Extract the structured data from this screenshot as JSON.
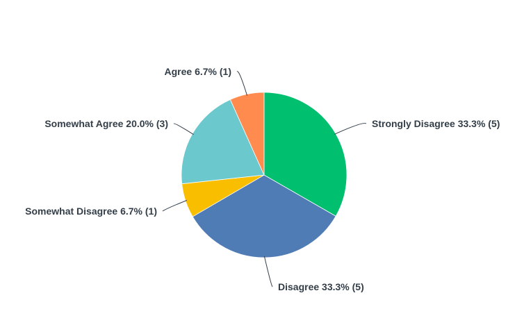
{
  "chart_data": {
    "type": "pie",
    "slices": [
      {
        "label": "Strongly Disagree",
        "percent": 33.3,
        "count": 5,
        "color": "#00bf6f",
        "text": "Strongly Disagree 33.3% (5)"
      },
      {
        "label": "Disagree",
        "percent": 33.3,
        "count": 5,
        "color": "#507cb6",
        "text": "Disagree 33.3% (5)"
      },
      {
        "label": "Somewhat Disagree",
        "percent": 6.7,
        "count": 1,
        "color": "#f9be00",
        "text": "Somewhat Disagree 6.7% (1)"
      },
      {
        "label": "Somewhat Agree",
        "percent": 20.0,
        "count": 3,
        "color": "#6bc8cd",
        "text": "Somewhat Agree 20.0% (3)"
      },
      {
        "label": "Agree",
        "percent": 6.7,
        "count": 1,
        "color": "#ff8b4f",
        "text": "Agree 6.7% (1)"
      }
    ]
  }
}
